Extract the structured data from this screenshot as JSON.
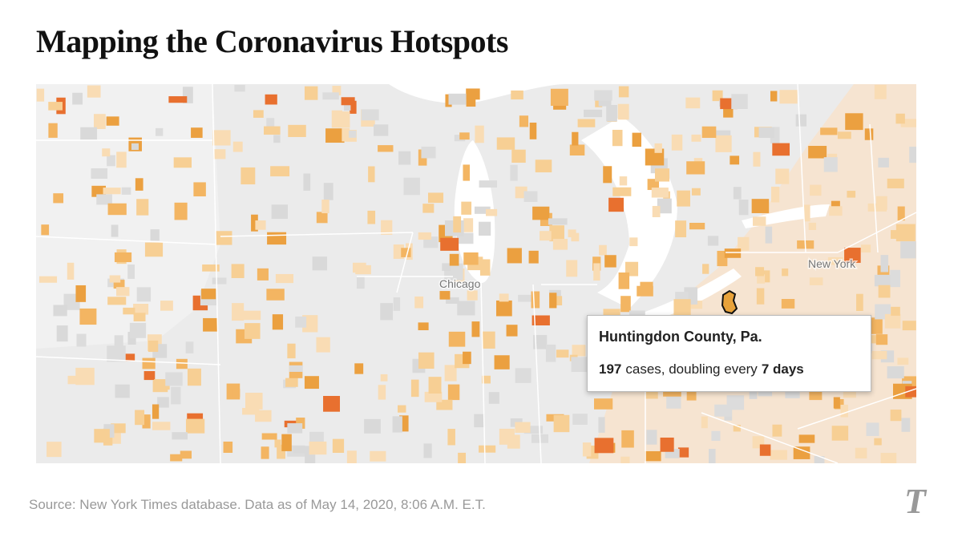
{
  "header": {
    "title": "Mapping the Coronavirus Hotspots"
  },
  "map": {
    "labels": [
      "Chicago",
      "New York"
    ]
  },
  "tooltip": {
    "county": "Huntingdon County, Pa.",
    "cases": "197",
    "cases_text": "cases, doubling every",
    "doubling": "7 days"
  },
  "footer": {
    "source": "Source: New York Times database.  Data as of May 14, 2020, 8:06 A.M. E.T.",
    "logo": "T"
  }
}
